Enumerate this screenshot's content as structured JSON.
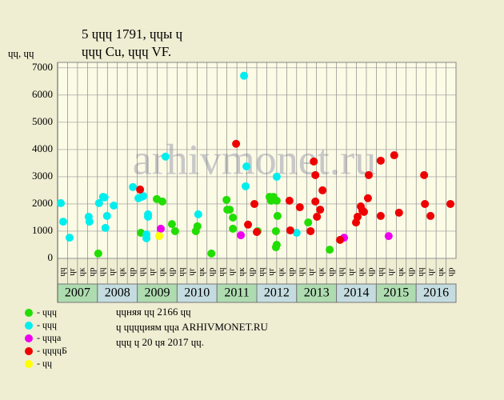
{
  "chart_data": {
    "type": "scatter",
    "title": "5 ɥɥɥ 1791, ɥɥы ɥ",
    "subtitle": "ɥɥɥ Cu, ɥɥɥ VF.",
    "y_label": "ɥɥ, ɥɥ",
    "watermark": "arhivmonet.ru",
    "xlim": [
      2007,
      2017
    ],
    "ylim": [
      0,
      7200
    ],
    "yticks": [
      0,
      1000,
      2000,
      3000,
      4000,
      5000,
      6000,
      7000
    ],
    "grid": true,
    "years": [
      2007,
      2008,
      2009,
      2010,
      2011,
      2012,
      2013,
      2014,
      2015,
      2016
    ],
    "quarters": [
      "ɥɥ",
      "ɥr",
      "ɥк",
      "ɥр",
      "ɥɥ",
      "ɥr",
      "ɥк",
      "ɥр",
      "ɥɥ",
      "ɥr",
      "ɥк",
      "ɥр",
      "ɥɥ",
      "ɥr",
      "ɥк",
      "ɥр",
      "ɥɥ",
      "ɥr",
      "ɥк",
      "ɥр",
      "ɥɥ",
      "ɥr",
      "ɥк",
      "ɥр",
      "ɥɥ",
      "ɥr",
      "ɥк",
      "ɥр",
      "ɥɥ",
      "ɥr",
      "ɥк",
      "ɥр",
      "ɥɥ",
      "ɥr",
      "ɥк",
      "ɥр",
      "ɥɥ",
      "ɥr",
      "ɥк",
      "ɥр"
    ],
    "notes": [
      "ɥɥняя ɥɥ 2166 ɥɥ",
      "ɥ ɥɥɥɥиям ɥɥа ARHIVMONET.RU",
      "ɥɥɥ ɥ 20 ɥя 2017 ɥɥ."
    ],
    "series": [
      {
        "name": "- ɥɥɥ",
        "color": "#22dd00",
        "x": [
          2008.02,
          2009.09,
          2009.49,
          2009.63,
          2009.87,
          2009.95,
          2010.47,
          2010.51,
          2010.86,
          2011.24,
          2011.26,
          2011.32,
          2011.4,
          2011.4,
          2012.02,
          2012.32,
          2012.36,
          2012.42,
          2012.5,
          2012.52,
          2012.48,
          2012.5,
          2012.48,
          2013.29,
          2013.83
        ],
        "values": [
          180,
          940,
          2180,
          2090,
          1260,
          1000,
          1000,
          1180,
          180,
          2150,
          1790,
          1790,
          1500,
          1090,
          1000,
          2260,
          2120,
          2260,
          2120,
          1560,
          1000,
          500,
          410,
          1320,
          320
        ]
      },
      {
        "name": "- ɥɥɥ",
        "color": "#00eeee",
        "x": [
          2007.08,
          2007.14,
          2007.3,
          2007.78,
          2007.8,
          2008.04,
          2008.14,
          2008.18,
          2008.2,
          2008.24,
          2008.41,
          2008.89,
          2009.03,
          2009.11,
          2009.15,
          2009.23,
          2009.23,
          2009.27,
          2009.27,
          2009.71,
          2010.53,
          2011.68,
          2011.72,
          2011.74,
          2012.5,
          2013.0
        ],
        "values": [
          2030,
          1350,
          760,
          1530,
          1350,
          2030,
          2260,
          2240,
          1120,
          1560,
          1940,
          2620,
          2210,
          2260,
          2290,
          880,
          740,
          1530,
          1620,
          3740,
          1620,
          6710,
          2650,
          3380,
          3000,
          940
        ]
      },
      {
        "name": "- ɥɥɥа",
        "color": "#ee00ee",
        "x": [
          2009.59,
          2011.6,
          2014.19,
          2015.31
        ],
        "values": [
          1090,
          850,
          760,
          820
        ]
      },
      {
        "name": "- ɥɥɥɥБ",
        "color": "#ee0000",
        "x": [
          2009.07,
          2011.48,
          2011.78,
          2011.94,
          2012.0,
          2012.82,
          2012.84,
          2013.08,
          2013.35,
          2013.43,
          2013.47,
          2013.47,
          2013.51,
          2013.59,
          2013.65,
          2014.09,
          2014.49,
          2014.53,
          2014.61,
          2014.65,
          2014.69,
          2014.79,
          2014.81,
          2015.11,
          2015.11,
          2015.45,
          2015.57,
          2016.2,
          2016.22,
          2016.36,
          2016.86
        ],
        "values": [
          2530,
          4210,
          1240,
          2000,
          970,
          2120,
          1030,
          1880,
          1000,
          3560,
          3060,
          2090,
          1530,
          1790,
          2500,
          680,
          1320,
          1530,
          1910,
          1760,
          1710,
          2210,
          3060,
          3590,
          1560,
          3790,
          1680,
          3060,
          2000,
          1560,
          2000
        ]
      },
      {
        "name": "- ɥɥ",
        "color": "#ffff00",
        "x": [
          2009.55
        ],
        "values": [
          820
        ]
      }
    ]
  }
}
